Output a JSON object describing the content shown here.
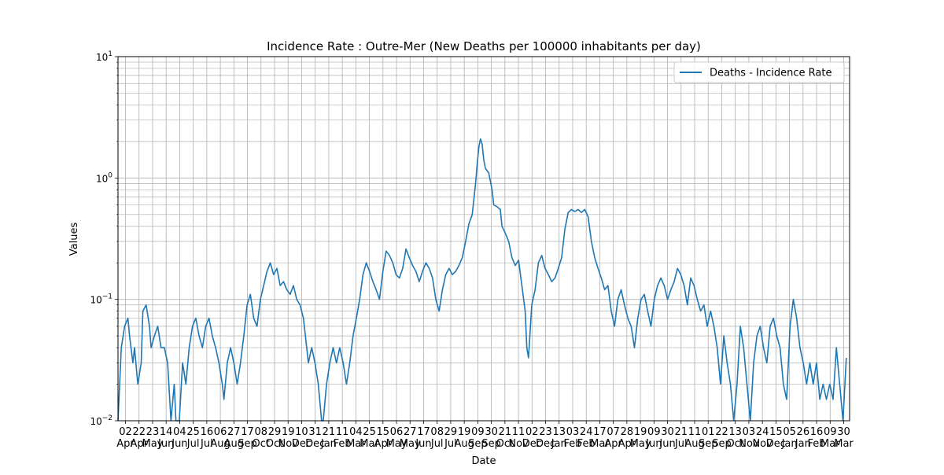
{
  "chart_data": {
    "type": "line",
    "title": "Incidence Rate : Outre-Mer  (New Deaths per 100000 inhabitants per day)",
    "xlabel": "Date",
    "ylabel": "Values",
    "yscale": "log",
    "ylim": [
      0.01,
      10
    ],
    "y_ticks": [
      {
        "value": 0.01,
        "base": "10",
        "exp": "−2"
      },
      {
        "value": 0.1,
        "base": "10",
        "exp": "−1"
      },
      {
        "value": 1,
        "base": "10",
        "exp": "0"
      },
      {
        "value": 10,
        "base": "10",
        "exp": "1"
      }
    ],
    "grid": true,
    "legend_position": "top-right",
    "colors": {
      "series": "#1f77b4",
      "grid": "#b0b0b0"
    },
    "x_ticks": [
      {
        "day": "02",
        "month": "Apr"
      },
      {
        "day": "22",
        "month": "Apr"
      },
      {
        "day": "23",
        "month": "May"
      },
      {
        "day": "14",
        "month": "Jun"
      },
      {
        "day": "04",
        "month": "Jun"
      },
      {
        "day": "25",
        "month": "Jul"
      },
      {
        "day": "16",
        "month": "Jul"
      },
      {
        "day": "06",
        "month": "Aug"
      },
      {
        "day": "27",
        "month": "Aug"
      },
      {
        "day": "17",
        "month": "Sep"
      },
      {
        "day": "08",
        "month": "Oct"
      },
      {
        "day": "29",
        "month": "Oct"
      },
      {
        "day": "19",
        "month": "Nov"
      },
      {
        "day": "10",
        "month": "Dec"
      },
      {
        "day": "31",
        "month": "Dec"
      },
      {
        "day": "21",
        "month": "Jan"
      },
      {
        "day": "11",
        "month": "Feb"
      },
      {
        "day": "04",
        "month": "Mar"
      },
      {
        "day": "25",
        "month": "Mar"
      },
      {
        "day": "15",
        "month": "Apr"
      },
      {
        "day": "06",
        "month": "May"
      },
      {
        "day": "27",
        "month": "May"
      },
      {
        "day": "17",
        "month": "Jun"
      },
      {
        "day": "08",
        "month": "Jul"
      },
      {
        "day": "29",
        "month": "Jul"
      },
      {
        "day": "19",
        "month": "Aug"
      },
      {
        "day": "09",
        "month": "Sep"
      },
      {
        "day": "30",
        "month": "Sep"
      },
      {
        "day": "21",
        "month": "Oct"
      },
      {
        "day": "11",
        "month": "Nov"
      },
      {
        "day": "02",
        "month": "Dec"
      },
      {
        "day": "23",
        "month": "Dec"
      },
      {
        "day": "13",
        "month": "Jan"
      },
      {
        "day": "03",
        "month": "Feb"
      },
      {
        "day": "24",
        "month": "Feb"
      },
      {
        "day": "17",
        "month": "Mar"
      },
      {
        "day": "07",
        "month": "Apr"
      },
      {
        "day": "28",
        "month": "Apr"
      },
      {
        "day": "19",
        "month": "May"
      },
      {
        "day": "09",
        "month": "Jun"
      },
      {
        "day": "30",
        "month": "Jun"
      },
      {
        "day": "21",
        "month": "Jul"
      },
      {
        "day": "11",
        "month": "Aug"
      },
      {
        "day": "01",
        "month": "Sep"
      },
      {
        "day": "22",
        "month": "Sep"
      },
      {
        "day": "13",
        "month": "Oct"
      },
      {
        "day": "03",
        "month": "Nov"
      },
      {
        "day": "24",
        "month": "Nov"
      },
      {
        "day": "15",
        "month": "Dec"
      },
      {
        "day": "05",
        "month": "Jan"
      },
      {
        "day": "26",
        "month": "Jan"
      },
      {
        "day": "16",
        "month": "Feb"
      },
      {
        "day": "09",
        "month": "Mar"
      },
      {
        "day": "30",
        "month": "Mar"
      }
    ],
    "series": [
      {
        "name": "Deaths - Incidence Rate",
        "points": [
          [
            0,
            0.01
          ],
          [
            2,
            0.04
          ],
          [
            4,
            0.06
          ],
          [
            6,
            0.07
          ],
          [
            7,
            0.05
          ],
          [
            9,
            0.03
          ],
          [
            10,
            0.04
          ],
          [
            12,
            0.02
          ],
          [
            14,
            0.03
          ],
          [
            15,
            0.08
          ],
          [
            17,
            0.09
          ],
          [
            19,
            0.06
          ],
          [
            20,
            0.04
          ],
          [
            22,
            0.05
          ],
          [
            24,
            0.06
          ],
          [
            26,
            0.04
          ],
          [
            28,
            0.04
          ],
          [
            30,
            0.03
          ],
          [
            32,
            0.01
          ],
          [
            34,
            0.02
          ],
          [
            35,
            0.01
          ],
          [
            37,
            0.01
          ],
          [
            39,
            0.03
          ],
          [
            41,
            0.02
          ],
          [
            43,
            0.04
          ],
          [
            45,
            0.06
          ],
          [
            47,
            0.07
          ],
          [
            49,
            0.05
          ],
          [
            51,
            0.04
          ],
          [
            53,
            0.06
          ],
          [
            55,
            0.07
          ],
          [
            57,
            0.05
          ],
          [
            59,
            0.04
          ],
          [
            61,
            0.03
          ],
          [
            63,
            0.02
          ],
          [
            64,
            0.015
          ],
          [
            66,
            0.03
          ],
          [
            68,
            0.04
          ],
          [
            70,
            0.03
          ],
          [
            72,
            0.02
          ],
          [
            74,
            0.03
          ],
          [
            76,
            0.05
          ],
          [
            78,
            0.09
          ],
          [
            80,
            0.11
          ],
          [
            82,
            0.07
          ],
          [
            84,
            0.06
          ],
          [
            86,
            0.1
          ],
          [
            88,
            0.13
          ],
          [
            90,
            0.17
          ],
          [
            92,
            0.2
          ],
          [
            94,
            0.16
          ],
          [
            96,
            0.18
          ],
          [
            98,
            0.13
          ],
          [
            100,
            0.14
          ],
          [
            102,
            0.12
          ],
          [
            104,
            0.11
          ],
          [
            106,
            0.13
          ],
          [
            108,
            0.1
          ],
          [
            110,
            0.09
          ],
          [
            112,
            0.07
          ],
          [
            114,
            0.04
          ],
          [
            115,
            0.03
          ],
          [
            117,
            0.04
          ],
          [
            119,
            0.03
          ],
          [
            121,
            0.02
          ],
          [
            123,
            0.01
          ],
          [
            124,
            0.01
          ],
          [
            126,
            0.02
          ],
          [
            128,
            0.03
          ],
          [
            130,
            0.04
          ],
          [
            132,
            0.03
          ],
          [
            134,
            0.04
          ],
          [
            136,
            0.03
          ],
          [
            138,
            0.02
          ],
          [
            140,
            0.03
          ],
          [
            142,
            0.05
          ],
          [
            144,
            0.07
          ],
          [
            146,
            0.1
          ],
          [
            148,
            0.16
          ],
          [
            150,
            0.2
          ],
          [
            152,
            0.17
          ],
          [
            154,
            0.14
          ],
          [
            156,
            0.12
          ],
          [
            158,
            0.1
          ],
          [
            160,
            0.17
          ],
          [
            162,
            0.25
          ],
          [
            164,
            0.23
          ],
          [
            166,
            0.2
          ],
          [
            168,
            0.16
          ],
          [
            170,
            0.15
          ],
          [
            172,
            0.18
          ],
          [
            174,
            0.26
          ],
          [
            176,
            0.22
          ],
          [
            178,
            0.19
          ],
          [
            180,
            0.17
          ],
          [
            182,
            0.14
          ],
          [
            184,
            0.17
          ],
          [
            186,
            0.2
          ],
          [
            188,
            0.18
          ],
          [
            190,
            0.15
          ],
          [
            192,
            0.1
          ],
          [
            194,
            0.08
          ],
          [
            196,
            0.12
          ],
          [
            198,
            0.16
          ],
          [
            200,
            0.18
          ],
          [
            202,
            0.16
          ],
          [
            204,
            0.17
          ],
          [
            206,
            0.19
          ],
          [
            208,
            0.22
          ],
          [
            210,
            0.3
          ],
          [
            212,
            0.42
          ],
          [
            214,
            0.5
          ],
          [
            216,
            0.9
          ],
          [
            217,
            1.3
          ],
          [
            218,
            1.8
          ],
          [
            219,
            2.1
          ],
          [
            220,
            1.9
          ],
          [
            221,
            1.4
          ],
          [
            222,
            1.2
          ],
          [
            224,
            1.1
          ],
          [
            226,
            0.8
          ],
          [
            227,
            0.6
          ],
          [
            229,
            0.58
          ],
          [
            231,
            0.55
          ],
          [
            232,
            0.4
          ],
          [
            234,
            0.35
          ],
          [
            236,
            0.3
          ],
          [
            238,
            0.22
          ],
          [
            240,
            0.19
          ],
          [
            242,
            0.21
          ],
          [
            244,
            0.13
          ],
          [
            246,
            0.08
          ],
          [
            247,
            0.04
          ],
          [
            248,
            0.033
          ],
          [
            250,
            0.09
          ],
          [
            252,
            0.12
          ],
          [
            254,
            0.2
          ],
          [
            256,
            0.23
          ],
          [
            258,
            0.18
          ],
          [
            260,
            0.16
          ],
          [
            262,
            0.14
          ],
          [
            264,
            0.15
          ],
          [
            266,
            0.18
          ],
          [
            268,
            0.22
          ],
          [
            270,
            0.38
          ],
          [
            272,
            0.52
          ],
          [
            274,
            0.55
          ],
          [
            276,
            0.53
          ],
          [
            278,
            0.55
          ],
          [
            280,
            0.52
          ],
          [
            282,
            0.55
          ],
          [
            284,
            0.48
          ],
          [
            286,
            0.3
          ],
          [
            288,
            0.22
          ],
          [
            290,
            0.18
          ],
          [
            292,
            0.15
          ],
          [
            294,
            0.12
          ],
          [
            296,
            0.13
          ],
          [
            298,
            0.08
          ],
          [
            300,
            0.06
          ],
          [
            302,
            0.1
          ],
          [
            304,
            0.12
          ],
          [
            306,
            0.09
          ],
          [
            308,
            0.07
          ],
          [
            310,
            0.06
          ],
          [
            312,
            0.04
          ],
          [
            314,
            0.07
          ],
          [
            316,
            0.1
          ],
          [
            318,
            0.11
          ],
          [
            320,
            0.08
          ],
          [
            322,
            0.06
          ],
          [
            324,
            0.1
          ],
          [
            326,
            0.13
          ],
          [
            328,
            0.15
          ],
          [
            330,
            0.13
          ],
          [
            332,
            0.1
          ],
          [
            334,
            0.12
          ],
          [
            336,
            0.14
          ],
          [
            338,
            0.18
          ],
          [
            340,
            0.16
          ],
          [
            342,
            0.13
          ],
          [
            344,
            0.09
          ],
          [
            346,
            0.15
          ],
          [
            348,
            0.13
          ],
          [
            350,
            0.1
          ],
          [
            352,
            0.08
          ],
          [
            354,
            0.09
          ],
          [
            356,
            0.06
          ],
          [
            358,
            0.08
          ],
          [
            360,
            0.06
          ],
          [
            362,
            0.04
          ],
          [
            364,
            0.02
          ],
          [
            366,
            0.05
          ],
          [
            368,
            0.03
          ],
          [
            370,
            0.02
          ],
          [
            372,
            0.01
          ],
          [
            374,
            0.02
          ],
          [
            376,
            0.06
          ],
          [
            378,
            0.04
          ],
          [
            380,
            0.02
          ],
          [
            382,
            0.01
          ],
          [
            384,
            0.03
          ],
          [
            386,
            0.05
          ],
          [
            388,
            0.06
          ],
          [
            390,
            0.04
          ],
          [
            392,
            0.03
          ],
          [
            394,
            0.06
          ],
          [
            396,
            0.07
          ],
          [
            398,
            0.05
          ],
          [
            400,
            0.04
          ],
          [
            402,
            0.02
          ],
          [
            404,
            0.015
          ],
          [
            406,
            0.06
          ],
          [
            408,
            0.1
          ],
          [
            410,
            0.07
          ],
          [
            412,
            0.04
          ],
          [
            414,
            0.03
          ],
          [
            416,
            0.02
          ],
          [
            418,
            0.03
          ],
          [
            420,
            0.02
          ],
          [
            422,
            0.03
          ],
          [
            424,
            0.015
          ],
          [
            426,
            0.02
          ],
          [
            428,
            0.015
          ],
          [
            430,
            0.02
          ],
          [
            432,
            0.015
          ],
          [
            434,
            0.04
          ],
          [
            436,
            0.02
          ],
          [
            438,
            0.01
          ],
          [
            440,
            0.033
          ]
        ]
      }
    ]
  }
}
